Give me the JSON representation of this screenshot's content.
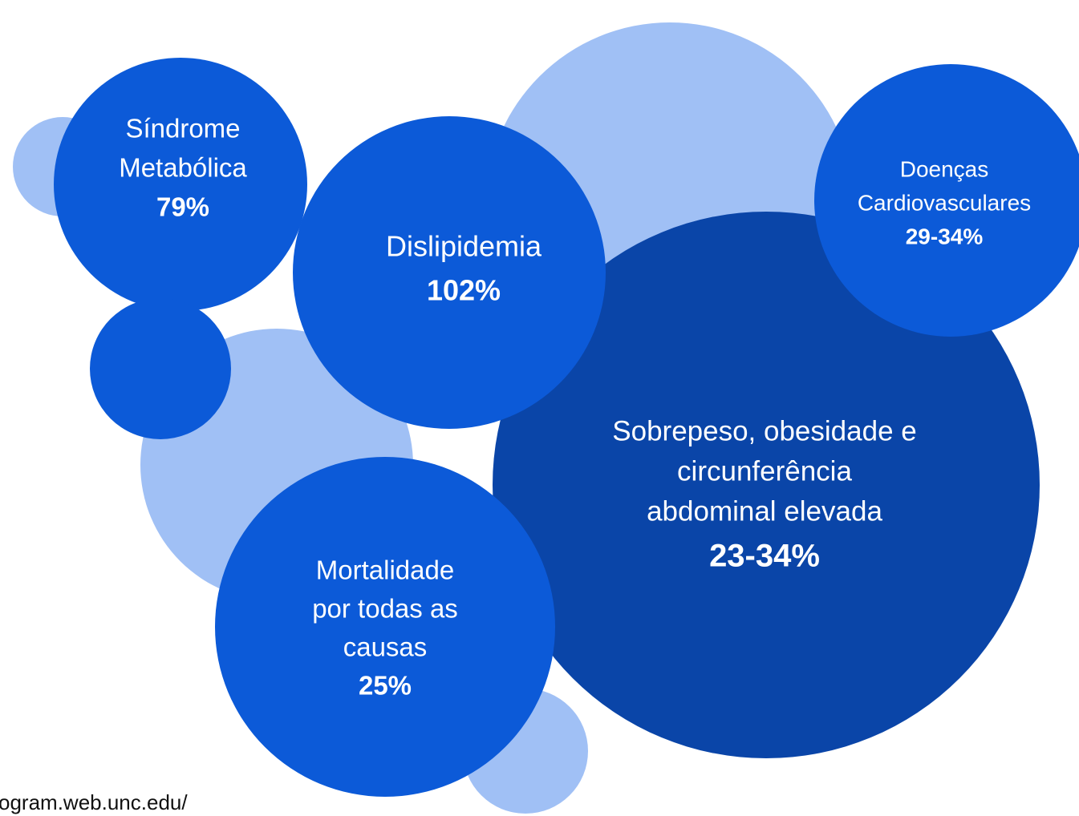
{
  "nodes": [
    {
      "lines": [
        "Síndrome",
        "Metabólica"
      ],
      "value": "79%"
    },
    {
      "lines": [
        "Dislipidemia"
      ],
      "value": "102%"
    },
    {
      "lines": [
        "Doenças",
        "Cardiovasculares"
      ],
      "value": "29-34%"
    },
    {
      "lines": [
        "Sobrepeso, obesidade e",
        "circunferência",
        "abdominal elevada"
      ],
      "value": "23-34%"
    },
    {
      "lines": [
        "Mortalidade",
        "por todas as",
        "causas"
      ],
      "value": "25%"
    }
  ],
  "footer": "ogram.web.unc.edu/"
}
